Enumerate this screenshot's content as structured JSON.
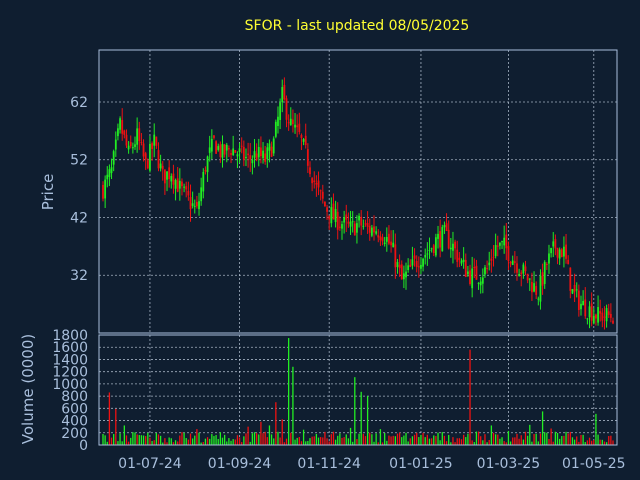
{
  "chart_data": {
    "type": "candlestick",
    "title": "SFOR - last updated 08/05/2025",
    "price_panel": {
      "ylabel": "Price",
      "ylim": [
        22,
        71
      ],
      "yticks": [
        32,
        42,
        52,
        62
      ],
      "grid": true
    },
    "volume_panel": {
      "ylabel": "Volume (0000)",
      "ylim": [
        0,
        1800
      ],
      "yticks": [
        0,
        200,
        400,
        600,
        800,
        1000,
        1200,
        1400,
        1600,
        1800
      ],
      "grid": true
    },
    "x_ticks": [
      "01-07-24",
      "01-09-24",
      "01-11-24",
      "01-01-25",
      "01-03-25",
      "01-05-25"
    ],
    "colors": {
      "background": "#0f1e30",
      "title": "#ffff33",
      "axis": "#a9bfdc",
      "up": "#22ee22",
      "down": "#ee1111",
      "grid": "#c9d6e6"
    },
    "close_series": [
      [
        0,
        47
      ],
      [
        4,
        50
      ],
      [
        8,
        58
      ],
      [
        12,
        53
      ],
      [
        16,
        56
      ],
      [
        20,
        51
      ],
      [
        24,
        55
      ],
      [
        28,
        49
      ],
      [
        32,
        50
      ],
      [
        36,
        47
      ],
      [
        40,
        45
      ],
      [
        44,
        43
      ],
      [
        48,
        51
      ],
      [
        52,
        55
      ],
      [
        56,
        53
      ],
      [
        60,
        54
      ],
      [
        64,
        53
      ],
      [
        68,
        52
      ],
      [
        72,
        53
      ],
      [
        76,
        52
      ],
      [
        80,
        55
      ],
      [
        84,
        63
      ],
      [
        88,
        58
      ],
      [
        92,
        56
      ],
      [
        96,
        52
      ],
      [
        100,
        47
      ],
      [
        104,
        44
      ],
      [
        108,
        42
      ],
      [
        112,
        41
      ],
      [
        116,
        40
      ],
      [
        120,
        41
      ],
      [
        124,
        40
      ],
      [
        128,
        40
      ],
      [
        132,
        39
      ],
      [
        136,
        36
      ],
      [
        140,
        31
      ],
      [
        144,
        33
      ],
      [
        148,
        35
      ],
      [
        152,
        36
      ],
      [
        156,
        38
      ],
      [
        160,
        39
      ],
      [
        164,
        37
      ],
      [
        168,
        34
      ],
      [
        172,
        32
      ],
      [
        176,
        32
      ],
      [
        180,
        33
      ],
      [
        184,
        37
      ],
      [
        188,
        37
      ],
      [
        192,
        35
      ],
      [
        196,
        33
      ],
      [
        200,
        31
      ],
      [
        204,
        29
      ],
      [
        208,
        34
      ],
      [
        212,
        37
      ],
      [
        216,
        36
      ],
      [
        220,
        29
      ],
      [
        224,
        27
      ],
      [
        228,
        26
      ],
      [
        232,
        25
      ]
    ],
    "volume_series": [
      [
        0,
        180
      ],
      [
        3,
        860
      ],
      [
        6,
        590
      ],
      [
        10,
        320
      ],
      [
        14,
        210
      ],
      [
        18,
        160
      ],
      [
        22,
        120
      ],
      [
        27,
        150
      ],
      [
        32,
        110
      ],
      [
        38,
        200
      ],
      [
        44,
        260
      ],
      [
        50,
        100
      ],
      [
        56,
        120
      ],
      [
        62,
        90
      ],
      [
        68,
        300
      ],
      [
        74,
        380
      ],
      [
        78,
        320
      ],
      [
        81,
        700
      ],
      [
        84,
        420
      ],
      [
        87,
        1750
      ],
      [
        89,
        1280
      ],
      [
        94,
        250
      ],
      [
        100,
        180
      ],
      [
        110,
        150
      ],
      [
        116,
        280
      ],
      [
        118,
        1110
      ],
      [
        121,
        870
      ],
      [
        124,
        800
      ],
      [
        130,
        260
      ],
      [
        136,
        150
      ],
      [
        142,
        200
      ],
      [
        148,
        130
      ],
      [
        154,
        110
      ],
      [
        160,
        150
      ],
      [
        166,
        110
      ],
      [
        170,
        130
      ],
      [
        172,
        1560
      ],
      [
        176,
        220
      ],
      [
        182,
        320
      ],
      [
        190,
        230
      ],
      [
        196,
        160
      ],
      [
        200,
        330
      ],
      [
        206,
        550
      ],
      [
        210,
        270
      ],
      [
        216,
        150
      ],
      [
        222,
        140
      ],
      [
        228,
        120
      ],
      [
        231,
        510
      ]
    ]
  }
}
